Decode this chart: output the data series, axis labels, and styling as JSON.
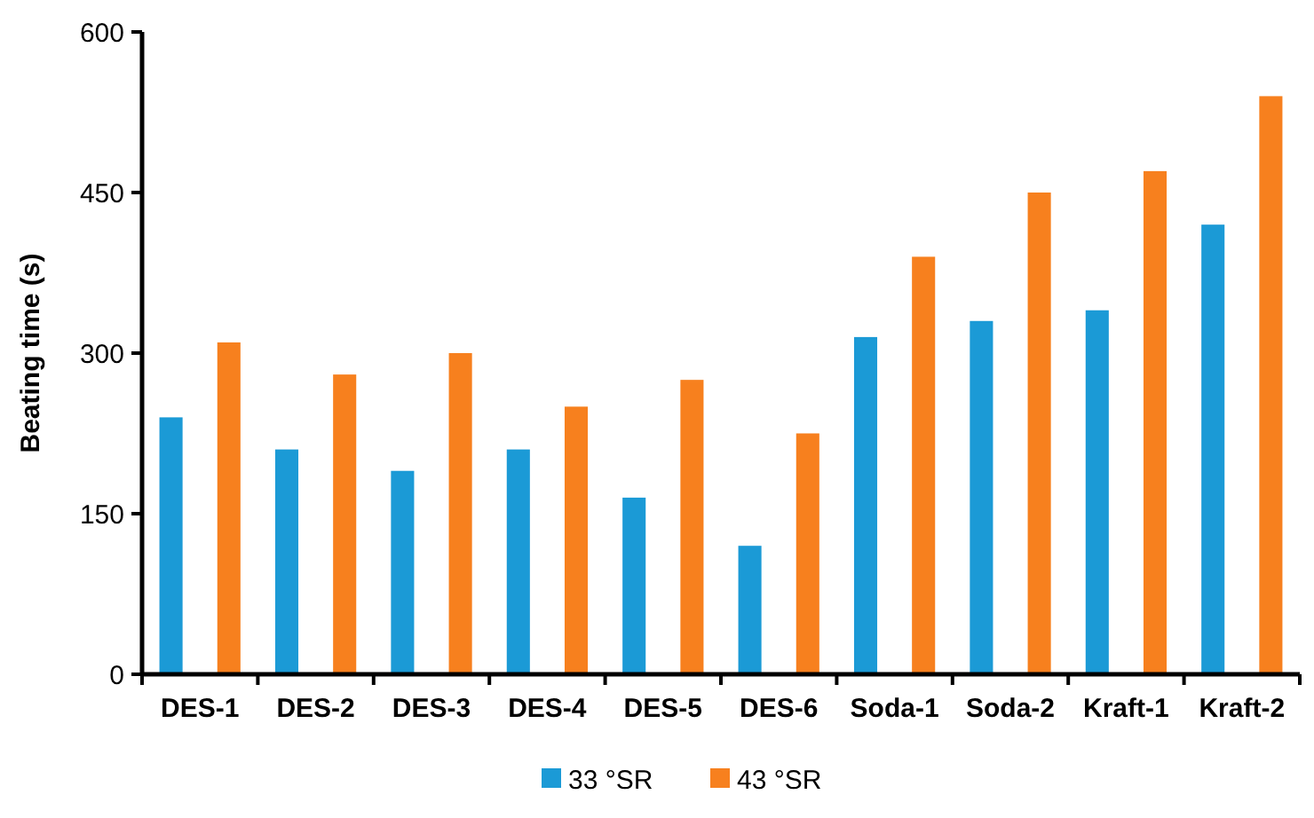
{
  "chart_data": {
    "type": "bar",
    "ylabel": "Beating time (s)",
    "categories": [
      "DES-1",
      "DES-2",
      "DES-3",
      "DES-4",
      "DES-5",
      "DES-6",
      "Soda-1",
      "Soda-2",
      "Kraft-1",
      "Kraft-2"
    ],
    "series": [
      {
        "name": "33 °SR",
        "color": "#1b9ad6",
        "values": [
          240,
          210,
          190,
          210,
          165,
          120,
          315,
          330,
          340,
          420
        ]
      },
      {
        "name": "43 °SR",
        "color": "#f7801e",
        "values": [
          310,
          280,
          300,
          250,
          275,
          225,
          390,
          450,
          470,
          540
        ]
      }
    ],
    "ylim": [
      0,
      600
    ],
    "yticks": [
      0,
      150,
      300,
      450,
      600
    ],
    "grid": false,
    "legend": "bottom"
  }
}
